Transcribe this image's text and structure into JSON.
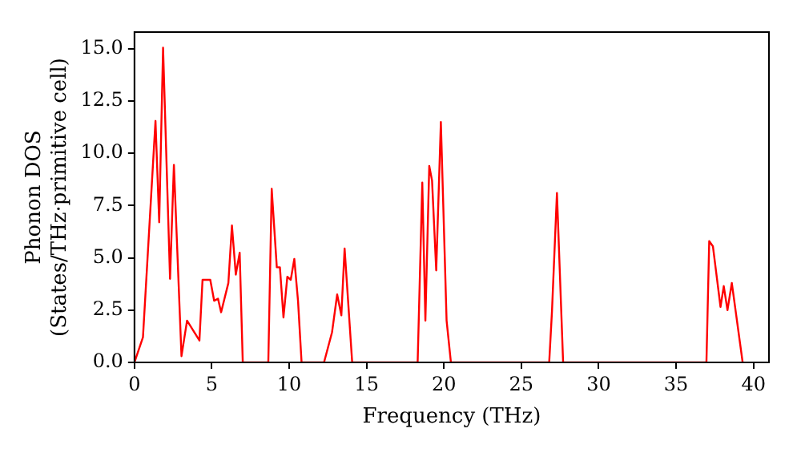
{
  "chart_data": {
    "type": "line",
    "xlabel": "Frequency (THz)",
    "ylabel": "Phonon DOS\n(States/THz·primitive cell)",
    "x": [
      0,
      0.55,
      1.36,
      1.6,
      1.85,
      2.3,
      2.55,
      3.04,
      3.4,
      4.2,
      4.4,
      4.9,
      5.15,
      5.4,
      5.6,
      6.07,
      6.3,
      6.55,
      6.8,
      7.0,
      8.65,
      8.87,
      9.2,
      9.4,
      9.63,
      9.88,
      10.1,
      10.33,
      10.57,
      10.8,
      12.25,
      12.77,
      13.1,
      13.37,
      13.58,
      14.07,
      18.3,
      18.6,
      18.8,
      19.05,
      19.23,
      19.5,
      19.8,
      20.17,
      20.45,
      26.8,
      26.98,
      27.3,
      27.7,
      36.96,
      37.14,
      37.38,
      37.87,
      38.08,
      38.32,
      38.6,
      39.3
    ],
    "series": [
      {
        "color": "#ff0000",
        "values": [
          0,
          1.2,
          11.55,
          6.7,
          15.05,
          4.0,
          9.45,
          0.3,
          2.0,
          1.05,
          3.95,
          3.95,
          2.95,
          3.05,
          2.4,
          3.8,
          6.55,
          4.2,
          5.25,
          0,
          0,
          8.3,
          4.55,
          4.55,
          2.15,
          4.1,
          3.95,
          4.95,
          2.95,
          0,
          0,
          1.45,
          3.25,
          2.25,
          5.45,
          0,
          0,
          8.6,
          2.0,
          9.4,
          8.7,
          4.4,
          11.5,
          2.0,
          0,
          0,
          2.45,
          8.1,
          0,
          0,
          5.8,
          5.55,
          2.65,
          3.65,
          2.5,
          3.8,
          0
        ]
      }
    ],
    "xlim": [
      0,
      41
    ],
    "xticks": [
      0,
      5,
      10,
      15,
      20,
      25,
      30,
      35,
      40
    ],
    "ylim": [
      0,
      15.8
    ],
    "yticks": [
      {
        "value": 0,
        "label": "0.0"
      },
      {
        "value": 2.5,
        "label": "2.5"
      },
      {
        "value": 5,
        "label": "5.0"
      },
      {
        "value": 7.5,
        "label": "7.5"
      },
      {
        "value": 10,
        "label": "10.0"
      },
      {
        "value": 12.5,
        "label": "12.5"
      },
      {
        "value": 15,
        "label": "15.0"
      }
    ],
    "grid": false,
    "legend": false,
    "marker": "none",
    "line_style": "solid"
  }
}
